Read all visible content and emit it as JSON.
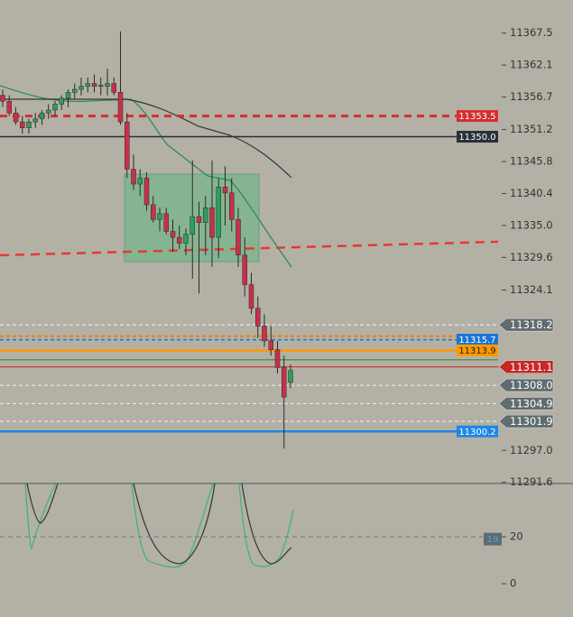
{
  "chart_data": {
    "type": "candlestick",
    "open": [
      11357,
      11356,
      11354,
      11352.5,
      11351.5,
      11352.5,
      11353,
      11354,
      11354.5,
      11355.5,
      11356.5,
      11357.5,
      11358,
      11358.5,
      11359,
      11358.5,
      11358.5,
      11359,
      11357.5,
      11352.5,
      11344.5,
      11342,
      11343,
      11338.5,
      11336,
      11337,
      11334,
      11333,
      11332,
      11333.5,
      11336.5,
      11335.5,
      11338,
      11333,
      11341.5,
      11340.5,
      11336,
      11330,
      11325,
      11321,
      11318,
      11315.5,
      11314,
      11311,
      11308.5
    ],
    "high": [
      11358,
      11357,
      11355,
      11353.5,
      11353,
      11354,
      11354.5,
      11355.5,
      11356,
      11357,
      11358,
      11359,
      11360,
      11360,
      11360.5,
      11360,
      11361.5,
      11360,
      11367.8,
      11354,
      11347,
      11344.5,
      11344,
      11340,
      11338,
      11338,
      11336,
      11335,
      11334.5,
      11346,
      11339,
      11340,
      11346,
      11343,
      11345,
      11343,
      11338,
      11333,
      11327,
      11323,
      11320,
      11318,
      11315.5,
      11313,
      11311.5
    ],
    "low": [
      11355,
      11353.5,
      11352,
      11350.5,
      11350.5,
      11351.5,
      11352,
      11353,
      11353.5,
      11354.5,
      11355,
      11356.5,
      11357,
      11357.5,
      11357.5,
      11357,
      11357,
      11357,
      11352,
      11343,
      11341,
      11340,
      11337.5,
      11335.5,
      11334,
      11333.5,
      11330.5,
      11331,
      11330,
      11326,
      11323.5,
      11330,
      11328,
      11329.5,
      11335,
      11334,
      11328,
      11323,
      11320,
      11316,
      11314.5,
      11313,
      11310,
      11297.3,
      11307.5
    ],
    "close": [
      11356,
      11354,
      11352.5,
      11351.5,
      11352.5,
      11353,
      11354,
      11354.5,
      11355.5,
      11356.5,
      11357.5,
      11358,
      11358.5,
      11359,
      11358.5,
      11358.7,
      11359,
      11357.5,
      11352.5,
      11344.5,
      11342,
      11343,
      11338.5,
      11336,
      11337,
      11334,
      11333,
      11332,
      11333.5,
      11336.5,
      11335.5,
      11338,
      11333,
      11341.5,
      11340.5,
      11336,
      11330,
      11325,
      11321,
      11318,
      11315.5,
      11314,
      11311,
      11306,
      11310.5
    ],
    "up_color": "#2e9e5b",
    "down_color": "#c8304a",
    "ylim": [
      11291.4,
      11373.1
    ],
    "yticks": [
      11367.5,
      11362.1,
      11356.7,
      11351.2,
      11345.8,
      11340.4,
      {
        "value": 11335.0,
        "label": "11335.0"
      },
      11329.6,
      11324.1,
      {
        "value": 11297.0,
        "label": "11297.0"
      },
      11291.6
    ],
    "levels": [
      {
        "value": 11353.5,
        "label": "11353.5",
        "color": "#d32f2f",
        "dash": true,
        "width": 3,
        "tag": "plot"
      },
      {
        "value": 11350.0,
        "label": "11350.0",
        "color": "#263238",
        "dash": false,
        "width": 1.5,
        "tag": "plot"
      },
      {
        "value": 11318.2,
        "label": "11318.2",
        "color": "#f2f2f2",
        "dash": true,
        "width": 1,
        "tag": "axis"
      },
      {
        "value": 11316.3,
        "color": "#f57c00",
        "dash": true,
        "width": 2,
        "tag": "none"
      },
      {
        "value": 11315.7,
        "label": "11315.7",
        "color": "#1976d2",
        "dash": true,
        "width": 1.5,
        "tag": "plot"
      },
      {
        "value": 11313.9,
        "label": "11313.9",
        "color": "#ff9800",
        "dash": false,
        "width": 2.5,
        "tag": "plot"
      },
      {
        "value": 11312.3,
        "color": "#2e7d32",
        "dash": false,
        "width": 1,
        "tag": "none"
      },
      {
        "value": 11311.1,
        "label": "11311.1",
        "color": "#c62828",
        "dash": false,
        "width": 1,
        "tag": "axis"
      },
      {
        "value": 11308.0,
        "label": "11308.0",
        "color": "#f2f2f2",
        "dash": true,
        "width": 1,
        "tag": "axis"
      },
      {
        "value": 11304.9,
        "label": "11304.9",
        "color": "#f2f2f2",
        "dash": true,
        "width": 1,
        "tag": "axis"
      },
      {
        "value": 11301.9,
        "label": "11301.9",
        "color": "#f2f2f2",
        "dash": true,
        "width": 1,
        "tag": "axis"
      },
      {
        "value": 11300.2,
        "label": "11300.2",
        "color": "#1e88e5",
        "dash": false,
        "width": 2.5,
        "tag": "plot"
      }
    ],
    "oscillator": {
      "ylim": [
        -14.2,
        42.7
      ],
      "yticks": [
        20,
        0
      ],
      "value": 19
    }
  }
}
